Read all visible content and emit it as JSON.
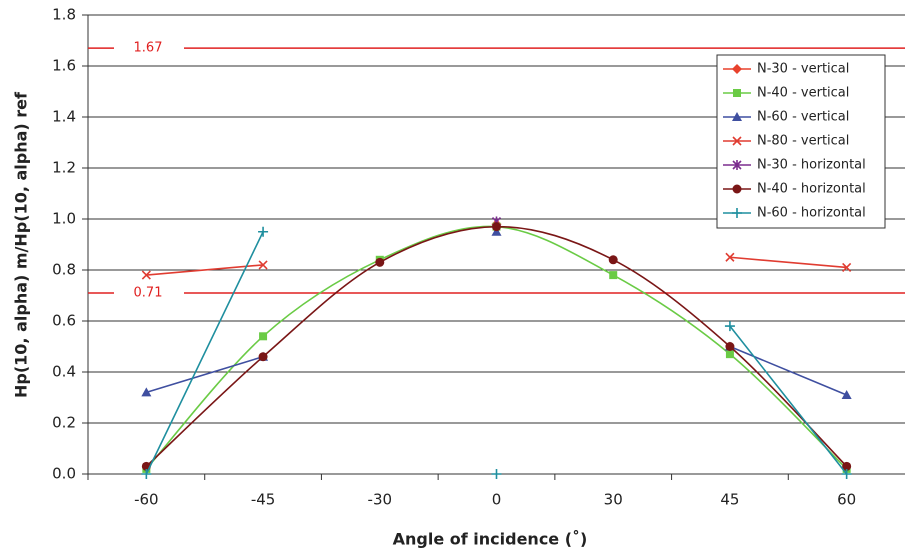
{
  "chart_data": {
    "type": "line",
    "xlabel": "Angle of incidence (˚)",
    "ylabel": "Hp(10, alpha) m/Hp(10, alpha) ref",
    "categories": [
      "-60",
      "-45",
      "-30",
      "0",
      "30",
      "45",
      "60"
    ],
    "ylim": [
      0,
      1.8
    ],
    "yticks": [
      {
        "value": 0,
        "label": "0.0"
      },
      0.2,
      0.4,
      0.6,
      0.8,
      {
        "value": 1,
        "label": "1.0"
      },
      1.2,
      1.4,
      1.6,
      1.8
    ],
    "grid": true,
    "legend": "upper right",
    "reference_lines": [
      1.67,
      0.71
    ],
    "reference_color": "#e02020",
    "series": [
      {
        "name": "N-30 - vertical",
        "color": "#e8412c",
        "marker": "diamond",
        "line": "none",
        "values": [
          null,
          null,
          null,
          0.98,
          null,
          null,
          null
        ]
      },
      {
        "name": "N-40 - vertical",
        "color": "#6acb45",
        "marker": "square",
        "line": "smooth",
        "values": [
          0.02,
          0.54,
          0.84,
          0.97,
          0.78,
          0.47,
          0.02
        ]
      },
      {
        "name": "N-60 - vertical",
        "color": "#3f4fa0",
        "marker": "triangle",
        "line": "straight",
        "values": [
          0.32,
          0.46,
          null,
          0.95,
          null,
          0.5,
          0.31
        ]
      },
      {
        "name": "N-80 - vertical",
        "color": "#e03c31",
        "marker": "x",
        "line": "straight",
        "values": [
          0.78,
          0.82,
          null,
          null,
          null,
          0.85,
          0.81
        ]
      },
      {
        "name": "N-30 - horizontal",
        "color": "#7b2d8e",
        "marker": "asterisk",
        "line": "none",
        "values": [
          null,
          null,
          null,
          0.99,
          null,
          null,
          null
        ]
      },
      {
        "name": "N-40 - horizontal",
        "color": "#7a1616",
        "marker": "circle",
        "line": "smooth",
        "values": [
          0.03,
          0.46,
          0.83,
          0.97,
          0.84,
          0.5,
          0.03
        ]
      },
      {
        "name": "N-60 - horizontal",
        "color": "#1f8f9f",
        "marker": "plus",
        "line": "straight",
        "values": [
          0,
          0.95,
          null,
          0,
          null,
          0.58,
          0
        ]
      }
    ]
  }
}
